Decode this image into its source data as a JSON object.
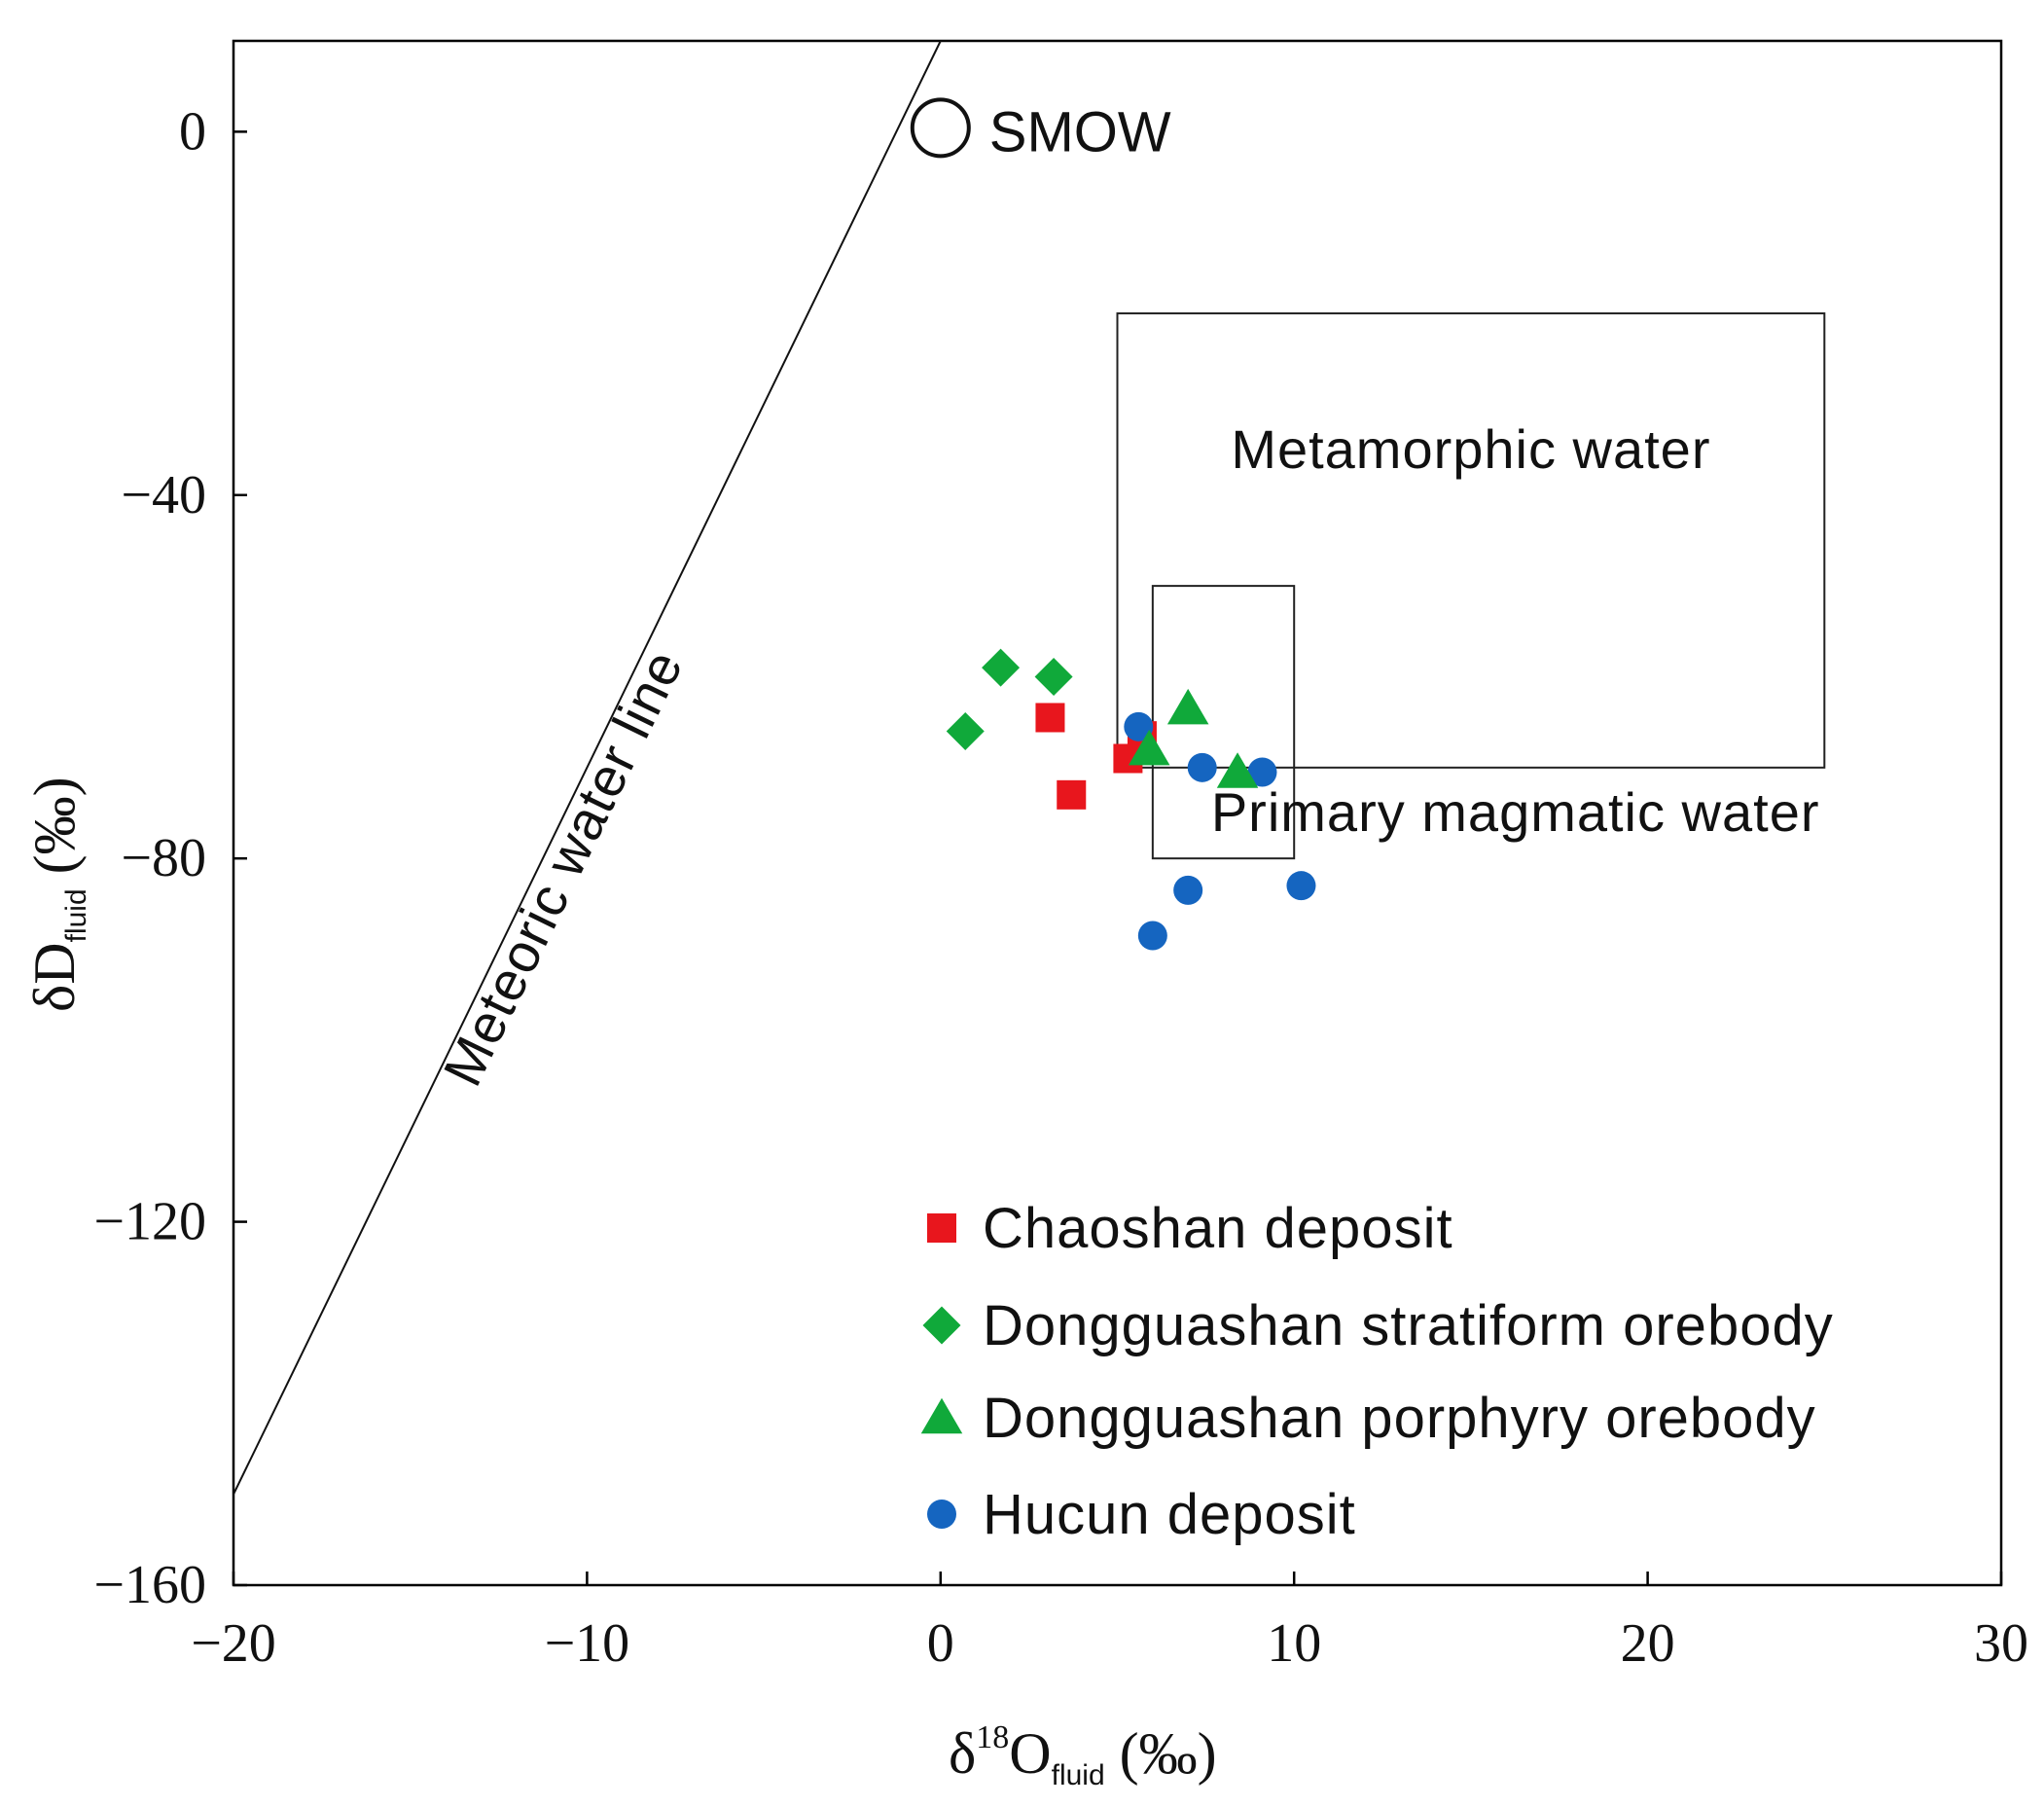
{
  "chart_data": {
    "type": "scatter",
    "title": "",
    "xlabel": {
      "main": "δ",
      "sup": "18",
      "body": "O",
      "sub": "fluid",
      "unit": " (‰)"
    },
    "ylabel": {
      "main": "δD",
      "sub": "fluid",
      "unit": " (‰)"
    },
    "xlim": [
      -20,
      30
    ],
    "ylim": [
      -160,
      10
    ],
    "x_ticks": [
      -20,
      -10,
      0,
      10,
      20,
      30
    ],
    "y_ticks": [
      0,
      -40,
      -80,
      -120,
      -160
    ],
    "x_tick_labels": [
      "−20",
      "−10",
      "0",
      "10",
      "20",
      "30"
    ],
    "y_tick_labels": [
      "0",
      "−40",
      "−80",
      "−120",
      "−160"
    ],
    "grid": false,
    "legend_position": "bottom-right",
    "meteoric_water_line": {
      "label": "Meteoric water line",
      "slope": 8,
      "intercept": 10
    },
    "smow": {
      "label": "SMOW",
      "x": 0,
      "y": 0
    },
    "fields": [
      {
        "name": "metamorphic-water-field",
        "label": "Metamorphic water",
        "x": [
          5,
          25
        ],
        "y": [
          -70,
          -20
        ]
      },
      {
        "name": "primary-magmatic-water-field",
        "label": "Primary magmatic water",
        "x": [
          6,
          10
        ],
        "y": [
          -80,
          -50
        ]
      }
    ],
    "series": [
      {
        "name": "Chaoshan deposit",
        "marker": "square",
        "color": "#e8161d",
        "points": [
          [
            3.1,
            -64.5
          ],
          [
            3.7,
            -73
          ],
          [
            5.3,
            -69
          ],
          [
            5.7,
            -66.5
          ]
        ]
      },
      {
        "name": "Dongguashan stratiform orebody",
        "marker": "diamond",
        "color": "#10a93a",
        "points": [
          [
            1.7,
            -59
          ],
          [
            3.2,
            -60
          ],
          [
            0.7,
            -66
          ]
        ]
      },
      {
        "name": "Dongguashan porphyry orebody",
        "marker": "triangle",
        "color": "#10a93a",
        "points": [
          [
            7.0,
            -63.5
          ],
          [
            5.9,
            -68
          ],
          [
            8.4,
            -70.5
          ]
        ]
      },
      {
        "name": "Hucun deposit",
        "marker": "circle",
        "color": "#1565c0",
        "points": [
          [
            5.6,
            -65.5
          ],
          [
            7.4,
            -70
          ],
          [
            9.1,
            -70.5
          ],
          [
            7.0,
            -83.5
          ],
          [
            6.0,
            -88.5
          ],
          [
            10.2,
            -83
          ]
        ]
      }
    ]
  }
}
